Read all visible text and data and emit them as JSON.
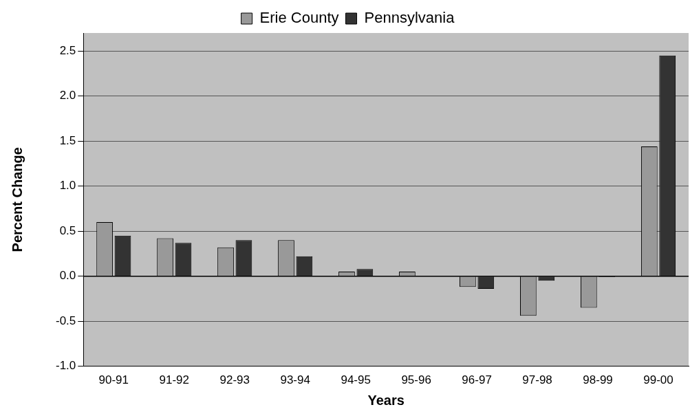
{
  "chart_data": {
    "type": "bar",
    "xlabel": "Years",
    "ylabel": "Percent Change",
    "categories": [
      "90-91",
      "91-92",
      "92-93",
      "93-94",
      "94-95",
      "95-96",
      "96-97",
      "97-98",
      "98-99",
      "99-00"
    ],
    "series": [
      {
        "name": "Erie County",
        "color": "#999999",
        "values": [
          0.6,
          0.42,
          0.32,
          0.4,
          0.05,
          0.05,
          -0.12,
          -0.44,
          -0.35,
          1.44
        ]
      },
      {
        "name": "Pennsylvania",
        "color": "#333333",
        "values": [
          0.45,
          0.37,
          0.4,
          0.22,
          0.08,
          0.0,
          -0.14,
          -0.05,
          -0.01,
          2.45
        ]
      }
    ],
    "ylim": [
      -1,
      2.7
    ],
    "yticks": [
      {
        "value": -1,
        "label": "-1.0"
      },
      -0.5,
      {
        "value": 0,
        "label": "0.0"
      },
      0.5,
      {
        "value": 1,
        "label": "1.0"
      },
      1.5,
      {
        "value": 2,
        "label": "2.0"
      },
      2.5
    ],
    "grid": "y",
    "legend": "top"
  }
}
